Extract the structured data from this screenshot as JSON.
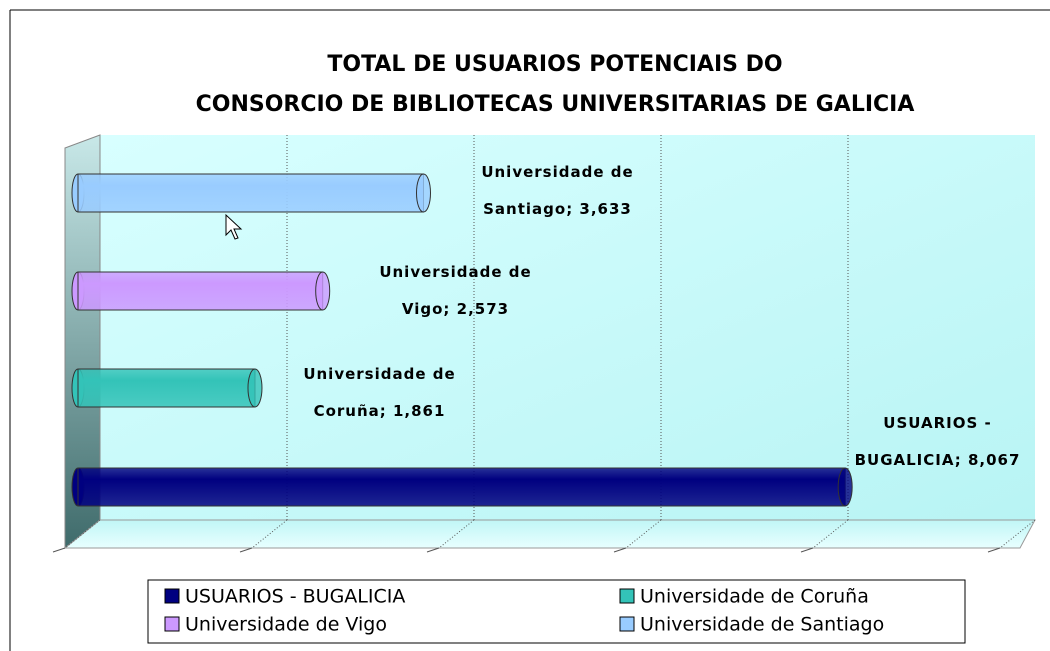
{
  "chart_data": {
    "type": "bar3d",
    "title": [
      "TOTAL DE USUARIOS POTENCIAIS DO",
      "CONSORCIO DE BIBLIOTECAS UNIVERSITARIAS DE GALICIA"
    ],
    "categories": [
      "USUARIOS - BUGALICIA",
      "Universidade de Coruña",
      "Universidade de Vigo",
      "Universidade de Santiago"
    ],
    "values": [
      8067,
      1861,
      2573,
      3633
    ],
    "value_labels": [
      "USUARIOS - BUGALICIA; 8,067",
      "Universidade de Coruña; 1,861",
      "Universidade de Vigo; 2,573",
      "Universidade de Santiago; 3,633"
    ],
    "colors": [
      "#000080",
      "#33c3b8",
      "#cc99ff",
      "#99ccff"
    ],
    "xlim": [
      0,
      10000
    ],
    "xticks": [
      0,
      2000,
      4000,
      6000,
      8000,
      10000
    ],
    "grid": true,
    "legend": {
      "position": "bottom",
      "order": [
        0,
        1,
        2,
        3
      ]
    }
  }
}
